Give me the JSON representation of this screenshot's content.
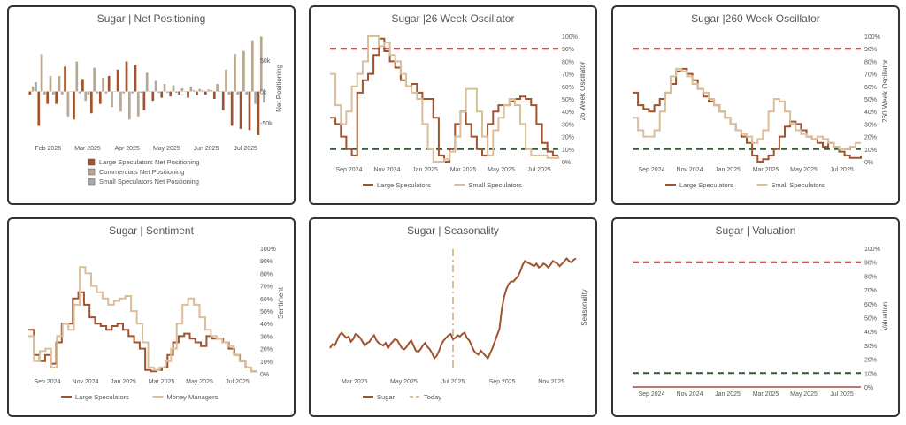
{
  "colors": {
    "large": "#A0532D",
    "small": "#D9BE9A",
    "comm": "#B7A88E",
    "smallbar": "#A9A9A9",
    "red": "#A8281E",
    "green": "#2F5E2E",
    "axis": "#555555",
    "border": "#333333"
  },
  "chart_data": [
    {
      "type": "bar",
      "title": "Sugar | Net Positioning",
      "ylabel": "Net Positioning",
      "yticks": [
        "50k",
        "0k",
        "-50k"
      ],
      "xticks": [
        "Feb 2025",
        "Mar 2025",
        "Apr 2025",
        "May 2025",
        "Jun 2025",
        "Jul 2025"
      ],
      "legend": [
        "Large Speculators Net Positioning",
        "Commercials Net Positioning",
        "Small Speculators Net Positioning"
      ],
      "ylim": [
        -80000,
        90000
      ],
      "series": [
        {
          "name": "Large Speculators Net Positioning",
          "values": [
            -5000,
            -55000,
            -20000,
            -20000,
            40000,
            -45000,
            20000,
            -35000,
            -20000,
            25000,
            35000,
            48000,
            42000,
            -30000,
            -15000,
            -10000,
            -8000,
            -5000,
            -10000,
            -6000,
            -5000,
            -12000,
            -30000,
            -55000,
            -60000,
            -62000,
            -70000
          ]
        },
        {
          "name": "Commercials Net Positioning",
          "values": [
            8000,
            60000,
            25000,
            25000,
            -40000,
            48000,
            -15000,
            38000,
            22000,
            -25000,
            -32000,
            -45000,
            -40000,
            30000,
            17000,
            12000,
            10000,
            5000,
            8000,
            4000,
            3000,
            12000,
            35000,
            60000,
            65000,
            82000,
            88000
          ]
        },
        {
          "name": "Small Speculators Net Positioning",
          "values": [
            15000,
            -5000,
            -5000,
            -5000,
            0,
            -3000,
            -5000,
            -3000,
            -3000,
            0,
            -3000,
            -3000,
            -2000,
            0,
            -2000,
            -2000,
            -2000,
            0,
            2000,
            2000,
            2000,
            0,
            -5000,
            -5000,
            -5000,
            -20000,
            -18000
          ]
        }
      ]
    },
    {
      "type": "line",
      "title": "Sugar |26 Week Oscillator",
      "ylabel": "26 Week Oscillator",
      "yticks": [
        "100%",
        "90%",
        "80%",
        "70%",
        "60%",
        "50%",
        "40%",
        "30%",
        "20%",
        "10%",
        "0%"
      ],
      "xticks": [
        "Sep 2024",
        "Nov 2024",
        "Jan 2025",
        "Mar 2025",
        "May 2025",
        "Jul 2025"
      ],
      "thresholds": [
        90,
        10
      ],
      "legend": [
        "Large Speculators",
        "Small Speculators"
      ],
      "series": [
        {
          "name": "Large Speculators",
          "values": [
            35,
            30,
            20,
            10,
            5,
            55,
            65,
            70,
            85,
            98,
            88,
            80,
            75,
            65,
            60,
            62,
            55,
            50,
            50,
            35,
            5,
            0,
            10,
            30,
            40,
            30,
            20,
            10,
            5,
            30,
            40,
            45,
            45,
            48,
            50,
            52,
            50,
            45,
            30,
            15,
            8,
            5,
            5
          ]
        },
        {
          "name": "Small Speculators",
          "values": [
            70,
            45,
            30,
            40,
            60,
            70,
            80,
            100,
            100,
            92,
            95,
            85,
            80,
            70,
            60,
            55,
            50,
            30,
            10,
            0,
            0,
            2,
            8,
            20,
            40,
            58,
            58,
            40,
            20,
            5,
            25,
            35,
            45,
            50,
            45,
            30,
            10,
            5,
            5,
            5,
            3,
            3,
            5
          ]
        }
      ]
    },
    {
      "type": "line",
      "title": "Sugar |260 Week Oscillator",
      "ylabel": "260 Week Oscillator",
      "yticks": [
        "100%",
        "90%",
        "80%",
        "70%",
        "60%",
        "50%",
        "40%",
        "30%",
        "20%",
        "10%",
        "0%"
      ],
      "xticks": [
        "Sep 2024",
        "Nov 2024",
        "Jan 2025",
        "Mar 2025",
        "May 2025",
        "Jul 2025"
      ],
      "thresholds": [
        90,
        10
      ],
      "legend": [
        "Large Speculators",
        "Small Speculators"
      ],
      "series": [
        {
          "name": "Large Speculators",
          "values": [
            55,
            45,
            42,
            40,
            45,
            50,
            55,
            62,
            72,
            74,
            70,
            65,
            58,
            52,
            48,
            45,
            40,
            35,
            30,
            25,
            20,
            15,
            5,
            0,
            2,
            5,
            10,
            20,
            28,
            32,
            30,
            25,
            20,
            18,
            15,
            12,
            15,
            12,
            8,
            5,
            3,
            3,
            5
          ]
        },
        {
          "name": "Small Speculators",
          "values": [
            35,
            25,
            20,
            20,
            25,
            40,
            55,
            68,
            74,
            72,
            68,
            62,
            58,
            55,
            50,
            45,
            40,
            35,
            30,
            25,
            22,
            20,
            15,
            18,
            25,
            40,
            50,
            48,
            40,
            30,
            25,
            22,
            20,
            18,
            20,
            18,
            15,
            12,
            10,
            10,
            12,
            15,
            15
          ]
        }
      ]
    },
    {
      "type": "line",
      "title": "Sugar | Sentiment",
      "ylabel": "Sentiment",
      "yticks": [
        "100%",
        "90%",
        "80%",
        "70%",
        "60%",
        "50%",
        "40%",
        "30%",
        "20%",
        "10%",
        "0%"
      ],
      "xticks": [
        "Sep 2024",
        "Nov 2024",
        "Jan 2025",
        "Mar 2025",
        "May 2025",
        "Jul 2025"
      ],
      "legend": [
        "Large Speculators",
        "Money Managers"
      ],
      "series": [
        {
          "name": "Large Speculators",
          "values": [
            35,
            15,
            10,
            15,
            8,
            25,
            40,
            40,
            60,
            65,
            55,
            45,
            40,
            38,
            35,
            38,
            40,
            35,
            30,
            25,
            20,
            3,
            2,
            3,
            5,
            15,
            25,
            30,
            32,
            28,
            25,
            22,
            30,
            28,
            28,
            25,
            20,
            15,
            10,
            5,
            2,
            2
          ]
        },
        {
          "name": "Money Managers",
          "values": [
            30,
            10,
            18,
            20,
            5,
            30,
            40,
            35,
            55,
            85,
            80,
            70,
            65,
            60,
            55,
            58,
            60,
            62,
            50,
            40,
            25,
            5,
            3,
            5,
            10,
            20,
            40,
            55,
            60,
            55,
            45,
            35,
            30,
            28,
            25,
            22,
            15,
            10,
            5,
            2,
            2
          ]
        }
      ]
    },
    {
      "type": "line",
      "title": "Sugar | Seasonality",
      "ylabel": "Seasonality",
      "xticks": [
        "Mar 2025",
        "May 2025",
        "Jul 2025",
        "Sep 2025",
        "Nov 2025"
      ],
      "legend": [
        "Sugar",
        "Today"
      ],
      "today_position": 0.5,
      "series": [
        {
          "name": "Sugar",
          "values": [
            20,
            23,
            22,
            26,
            30,
            32,
            30,
            28,
            29,
            25,
            27,
            31,
            30,
            28,
            25,
            22,
            24,
            25,
            28,
            30,
            26,
            24,
            23,
            22,
            24,
            20,
            23,
            25,
            27,
            26,
            23,
            20,
            19,
            21,
            24,
            26,
            22,
            18,
            17,
            19,
            22,
            24,
            21,
            19,
            16,
            12,
            14,
            18,
            23,
            26,
            28,
            30,
            31,
            27,
            28,
            30,
            29,
            31,
            32,
            28,
            26,
            22,
            18,
            16,
            15,
            18,
            16,
            14,
            12,
            16,
            20,
            25,
            30,
            35,
            50,
            60,
            66,
            70,
            72,
            72,
            74,
            76,
            80,
            85,
            88,
            87,
            86,
            85,
            84,
            86,
            83,
            84,
            86,
            85,
            83,
            85,
            88,
            87,
            86,
            84,
            86,
            88,
            90,
            88,
            87,
            89,
            90
          ]
        }
      ]
    },
    {
      "type": "line",
      "title": "Sugar | Valuation",
      "ylabel": "Valuation",
      "yticks": [
        "100%",
        "90%",
        "80%",
        "70%",
        "60%",
        "50%",
        "40%",
        "30%",
        "20%",
        "10%",
        "0%"
      ],
      "xticks": [
        "Sep 2024",
        "Nov 2024",
        "Jan 2025",
        "Mar 2025",
        "May 2025",
        "Jul 2025"
      ],
      "thresholds": [
        90,
        10
      ],
      "series": [
        {
          "name": "",
          "values": [
            0,
            0
          ]
        }
      ]
    }
  ]
}
